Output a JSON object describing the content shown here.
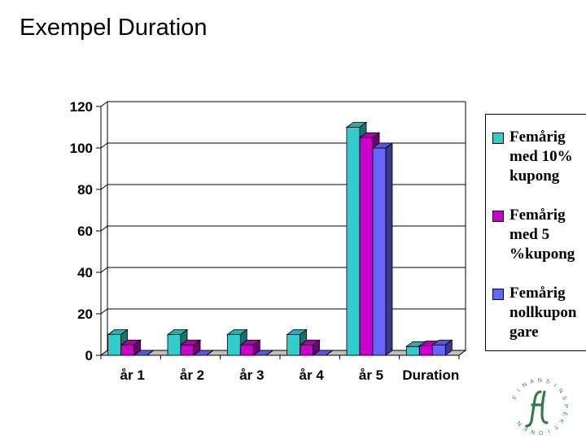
{
  "slide": {
    "title": "Exempel Duration"
  },
  "legend_items": [
    {
      "label": "Femårig med 10% kupong",
      "color": "#33CCCC"
    },
    {
      "label": "Femårig med 5 %kupong",
      "color": "#CC00CC"
    },
    {
      "label": "Femårig nollkupon gare",
      "color": "#6666FF"
    }
  ],
  "logo": {
    "text": "FINANSINSPEKTIONEN",
    "color": "#2E7D46"
  },
  "chart_data": {
    "type": "bar",
    "categories": [
      "år 1",
      "år 2",
      "år 3",
      "år 4",
      "år 5",
      "Duration"
    ],
    "series": [
      {
        "name": "Femårig med 10% kupong",
        "color": "#33CCCC",
        "values": [
          10,
          10,
          10,
          10,
          110,
          4.2
        ]
      },
      {
        "name": "Femårig med 5 %kupong",
        "color": "#CC00CC",
        "values": [
          5,
          5,
          5,
          5,
          105,
          4.5
        ]
      },
      {
        "name": "Femårig nollkupon gare",
        "color": "#6666FF",
        "values": [
          0,
          0,
          0,
          0,
          100,
          5
        ]
      }
    ],
    "ylim": [
      0,
      120
    ],
    "yticks": [
      0,
      20,
      40,
      60,
      80,
      100,
      120
    ],
    "grid": true,
    "legend_position": "right",
    "three_d": true
  }
}
